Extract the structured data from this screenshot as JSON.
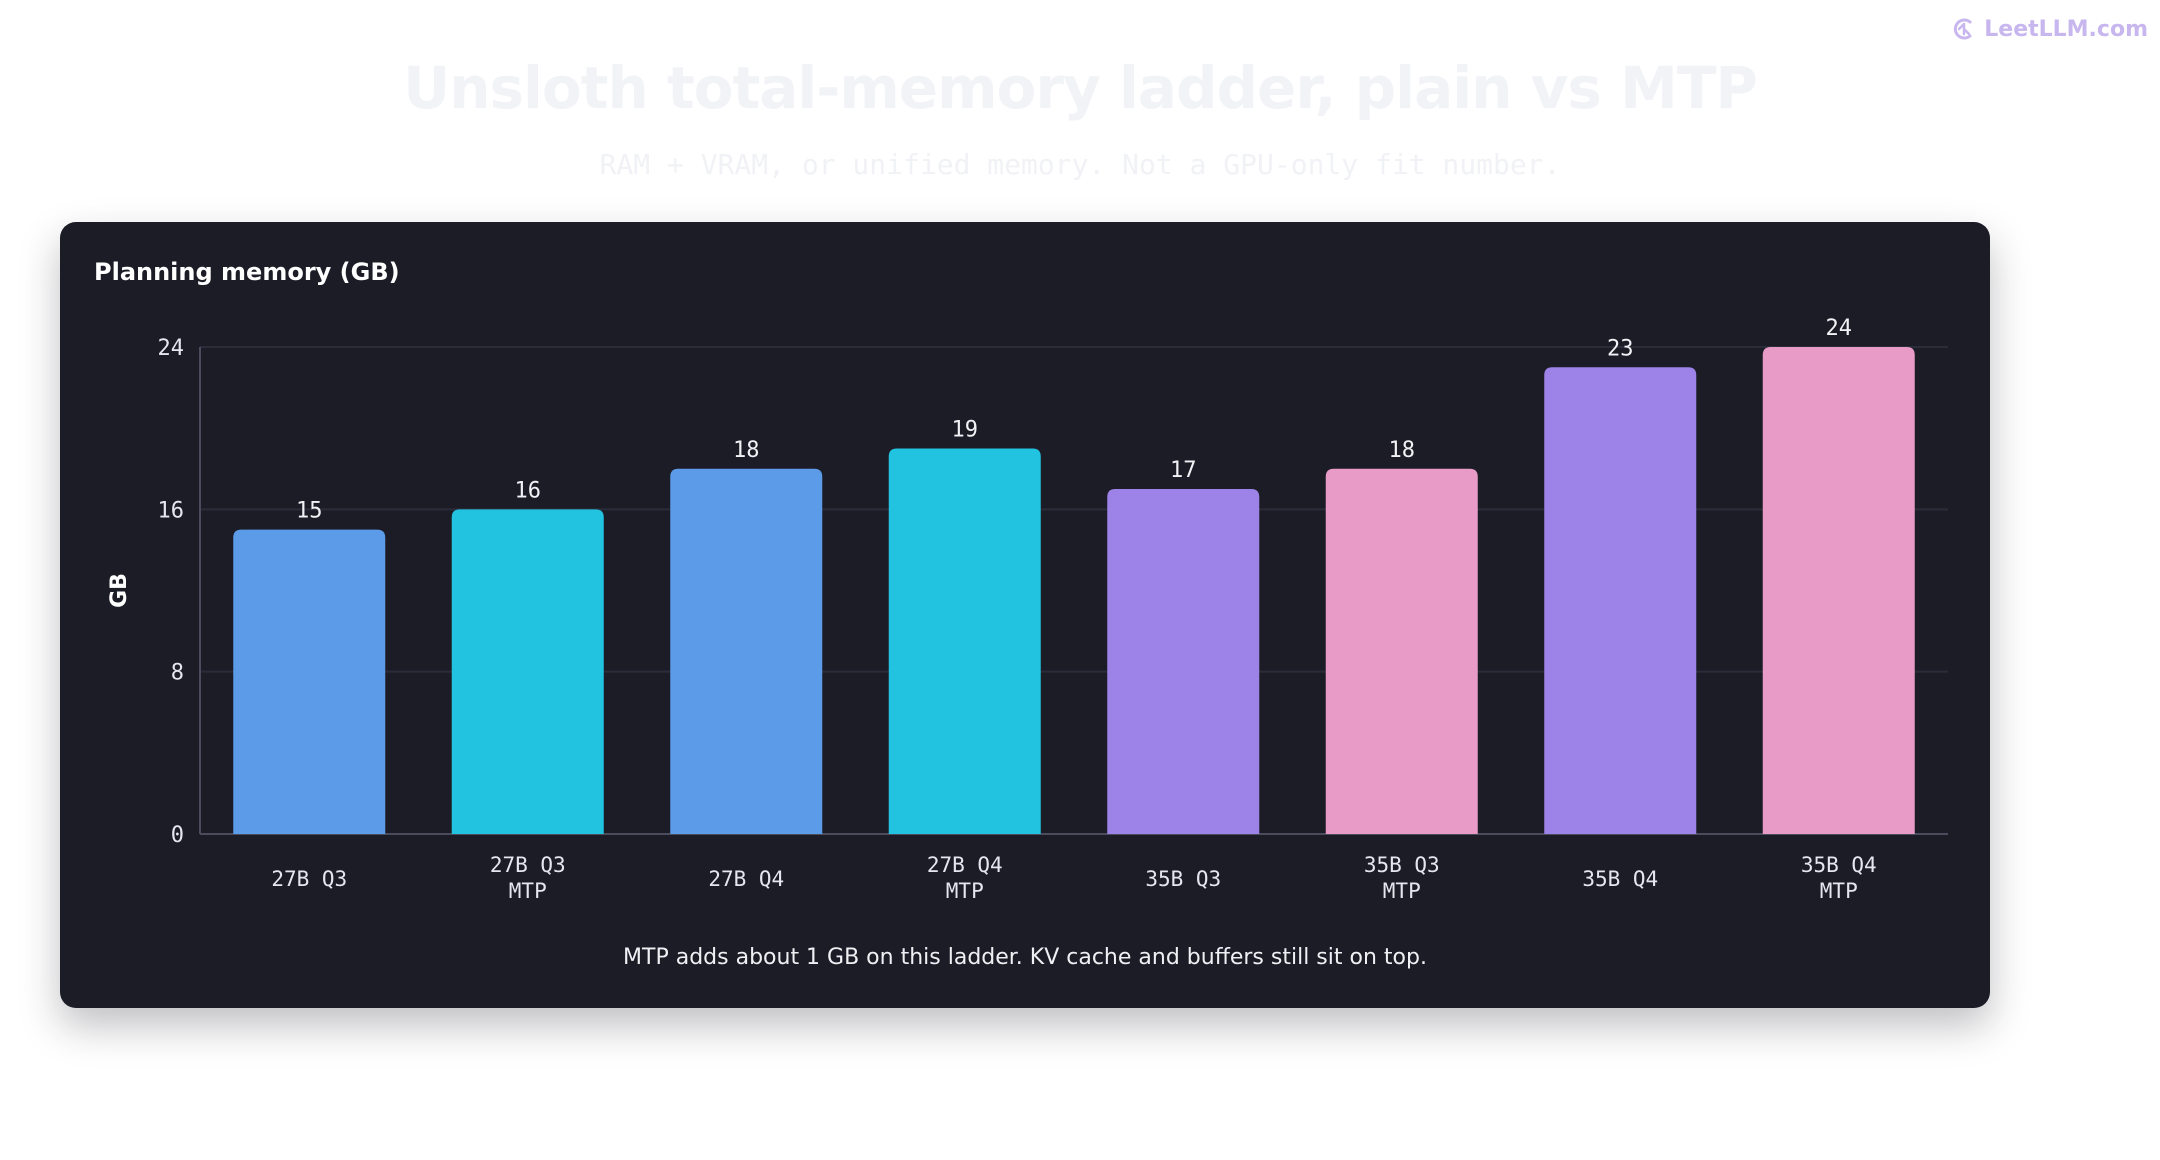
{
  "brand": {
    "name": "LeetLLM.com",
    "icon": "leetllm-logo-icon",
    "color": "#c8b6ef"
  },
  "header": {
    "title": "Unsloth total-memory ladder, plain vs MTP",
    "subtitle": "RAM + VRAM, or unified memory. Not a GPU-only fit number."
  },
  "card": {
    "title": "Planning memory (GB)",
    "caption": "MTP adds about 1 GB on this ladder. KV cache and buffers still sit on top."
  },
  "chart_data": {
    "type": "bar",
    "title": "Planning memory (GB)",
    "ylabel": "GB",
    "xlabel": "",
    "ylim": [
      0,
      24
    ],
    "yticks": [
      0,
      8,
      16,
      24
    ],
    "grid": true,
    "categories": [
      [
        "27B Q3"
      ],
      [
        "27B Q3",
        "MTP"
      ],
      [
        "27B Q4"
      ],
      [
        "27B Q4",
        "MTP"
      ],
      [
        "35B Q3"
      ],
      [
        "35B Q3",
        "MTP"
      ],
      [
        "35B Q4"
      ],
      [
        "35B Q4",
        "MTP"
      ]
    ],
    "values": [
      15,
      16,
      18,
      19,
      17,
      18,
      23,
      24
    ],
    "bar_colors": [
      "#5b9be8",
      "#22c3e0",
      "#5b9be8",
      "#22c3e0",
      "#9d83e7",
      "#e79bc6",
      "#9d83e7",
      "#e79bc6"
    ]
  }
}
